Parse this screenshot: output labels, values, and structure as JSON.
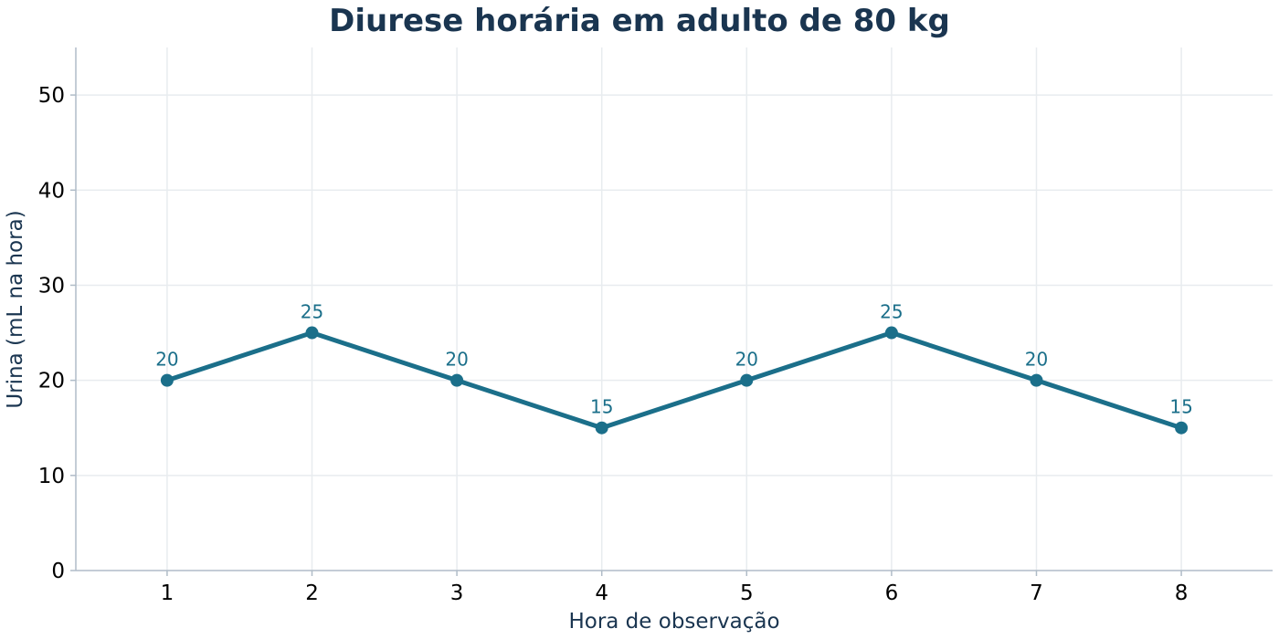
{
  "chart_data": {
    "type": "line",
    "title": "Diurese horária em adulto de 80 kg",
    "xlabel": "Hora de observação",
    "ylabel": "Urina (mL na hora)",
    "x": [
      1,
      2,
      3,
      4,
      5,
      6,
      7,
      8
    ],
    "x_tick_labels": [
      "1",
      "2",
      "3",
      "4",
      "5",
      "6",
      "7",
      "8"
    ],
    "y_ticks": [
      0,
      10,
      20,
      30,
      40,
      50
    ],
    "y_tick_labels": [
      "0",
      "10",
      "20",
      "30",
      "40",
      "50"
    ],
    "xlim": [
      0.37,
      8.63
    ],
    "ylim": [
      0,
      55
    ],
    "series": [
      {
        "values": [
          20,
          25,
          20,
          15,
          20,
          25,
          20,
          15
        ],
        "data_labels": [
          "20",
          "25",
          "20",
          "15",
          "20",
          "25",
          "20",
          "15"
        ],
        "color": "#1b6f8a"
      }
    ],
    "grid": true,
    "legend": "none",
    "colors": {
      "title": "#1a3550",
      "axis_label": "#1a3550",
      "grid": "#e8ecef",
      "axis_line": "#b0bcc8",
      "line": "#1b6f8a"
    }
  }
}
